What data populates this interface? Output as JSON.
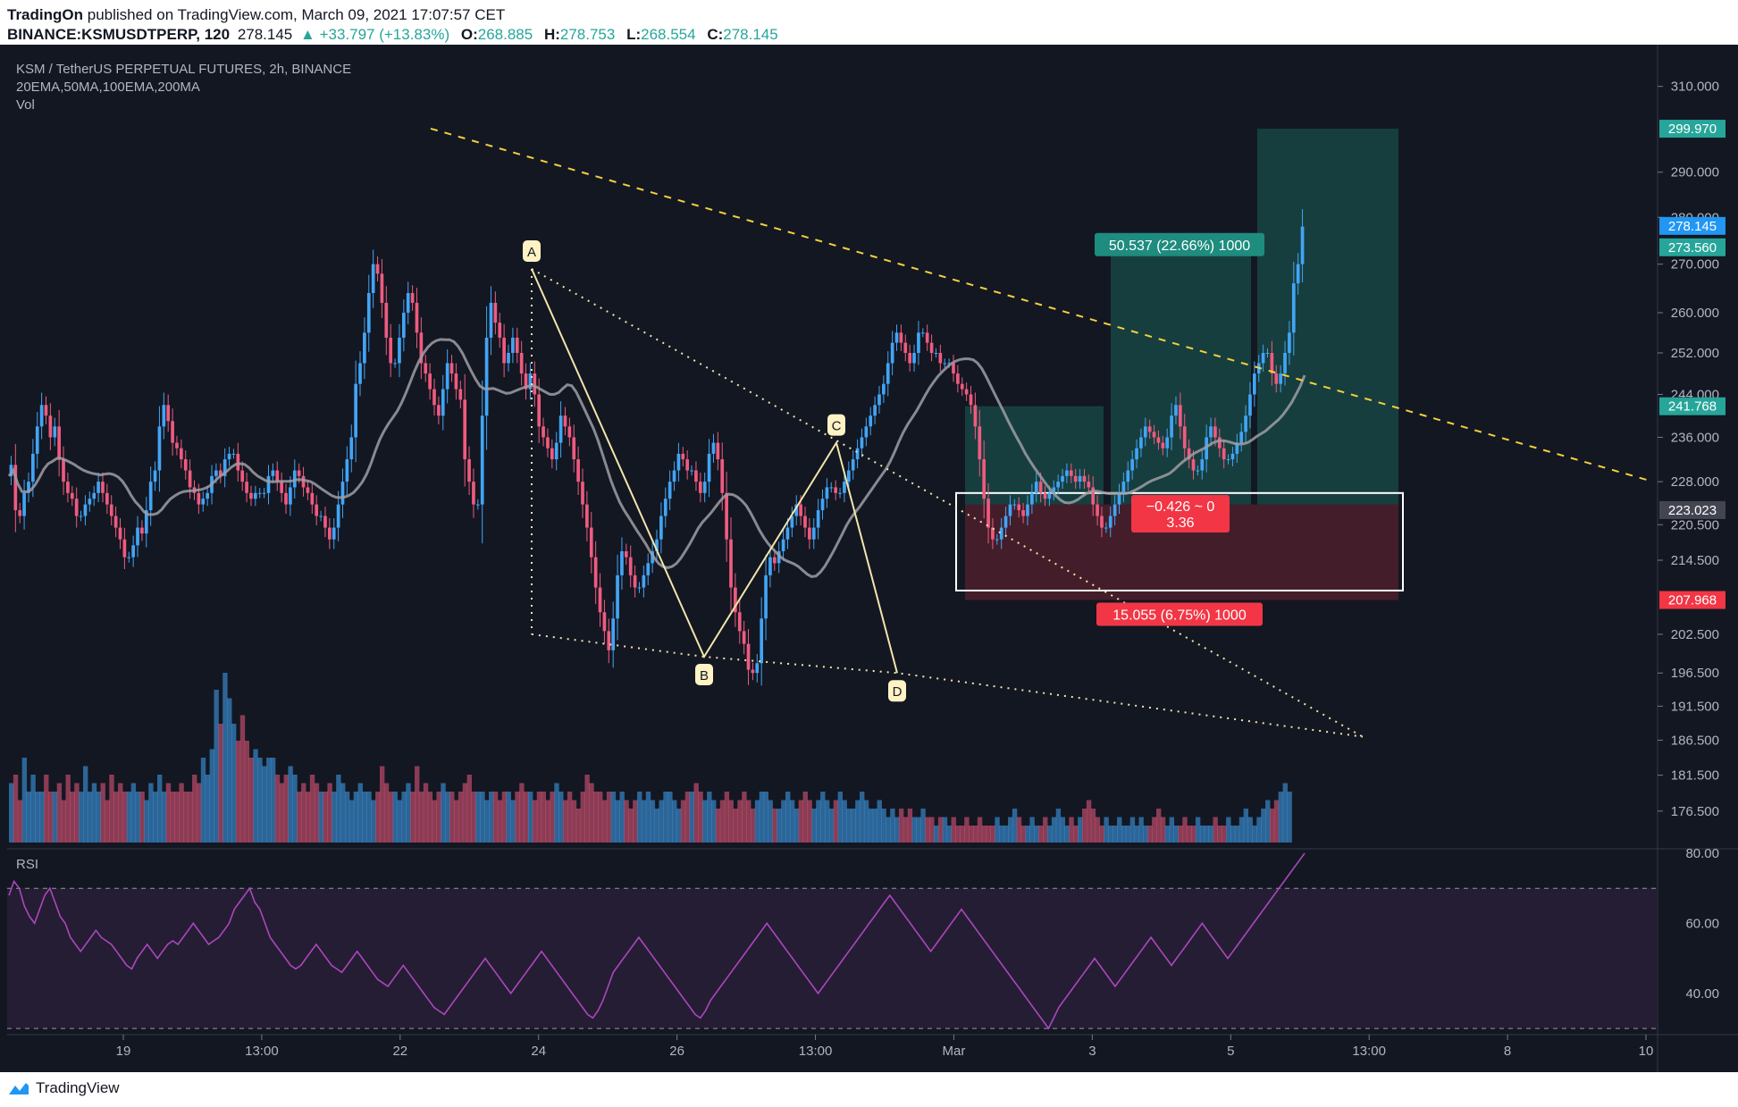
{
  "header": {
    "publisher": "TradingOn",
    "published_text": "published on TradingView.com, March 09, 2021 17:07:57 CET",
    "symbol": "BINANCE:KSMUSDTPERP, 120",
    "last": "278.145",
    "change": "+33.797 (+13.83%)",
    "o_label": "O:",
    "o": "268.885",
    "h_label": "H:",
    "h": "278.753",
    "l_label": "L:",
    "l": "268.554",
    "c_label": "C:",
    "c": "278.145"
  },
  "legend": {
    "title": "KSM / TetherUS PERPETUAL FUTURES, 2h, BINANCE",
    "indicators": "20EMA,50MA,100EMA,200MA",
    "volume": "Vol",
    "rsi": "RSI"
  },
  "footer": {
    "brand": "TradingView"
  },
  "colors": {
    "background": "#131722",
    "up": "#42a5f5",
    "down": "#ef5b7f",
    "ma": "#9e9ea4",
    "rsi": "#ab47bc",
    "trendline": "#f4d03f",
    "target_tag": "#26a69a",
    "stop_tag": "#f23645",
    "last_tag": "#2196f3"
  },
  "chart_data": [
    {
      "type": "candlestick",
      "title": "KSM / TetherUS PERPETUAL FUTURES, 2h, BINANCE",
      "y_scale": "log",
      "ylim": [
        172,
        318
      ],
      "y_ticks": [
        "310.000",
        "290.000",
        "280.000",
        "270.000",
        "260.000",
        "252.000",
        "244.000",
        "236.000",
        "228.000",
        "220.500",
        "214.500",
        "202.500",
        "196.500",
        "191.500",
        "186.500",
        "181.500",
        "176.500"
      ],
      "x_ticks": [
        "19",
        "13:00",
        "22",
        "24",
        "26",
        "13:00",
        "Mar",
        "3",
        "5",
        "13:00",
        "8",
        "10"
      ],
      "price_tags": [
        {
          "value": "299.970",
          "price": 299.97,
          "color": "#26a69a"
        },
        {
          "value": "278.145",
          "price": 278.145,
          "color": "#2196f3"
        },
        {
          "value": "273.560",
          "price": 273.56,
          "color": "#26a69a"
        },
        {
          "value": "241.768",
          "price": 241.768,
          "color": "#26a69a"
        },
        {
          "value": "223.023",
          "price": 223.023,
          "color": "#434651"
        },
        {
          "value": "207.968",
          "price": 207.968,
          "color": "#f23645"
        }
      ],
      "pattern_points": [
        {
          "label": "A",
          "price": 269
        },
        {
          "label": "B",
          "price": 199
        },
        {
          "label": "C",
          "price": 235
        },
        {
          "label": "D",
          "price": 196.5
        }
      ],
      "position_labels": {
        "target": "50.537 (22.66%) 1000",
        "stop": "15.055 (6.75%) 1000",
        "ratio_line1": "−0.426 ~ 0",
        "ratio_line2": "3.36"
      },
      "series": [
        {
          "name": "Price",
          "path": [
            229,
            231,
            223,
            222,
            226,
            228,
            233,
            238,
            242,
            240,
            236,
            238,
            232,
            228,
            226,
            225,
            222,
            222,
            224,
            225,
            226,
            228,
            226,
            224,
            222,
            220,
            218,
            215,
            215,
            217,
            220,
            219,
            223,
            228,
            230,
            238,
            242,
            239,
            235,
            234,
            232,
            230,
            227,
            226,
            224,
            225,
            226,
            229,
            230,
            229,
            232,
            233,
            233,
            230,
            228,
            226,
            225,
            226,
            226,
            226,
            229,
            230,
            228,
            226,
            224,
            227,
            230,
            229,
            227,
            226,
            224,
            222,
            222,
            220,
            218,
            220,
            224,
            228,
            232,
            236,
            246,
            250,
            256,
            264,
            270,
            268,
            262,
            255,
            250,
            250,
            255,
            260,
            264,
            262,
            256,
            250,
            248,
            245,
            242,
            240,
            245,
            250,
            248,
            245,
            243,
            232,
            228,
            224,
            224,
            240,
            255,
            262,
            258,
            255,
            250,
            252,
            255,
            252,
            248,
            245,
            248,
            244,
            238,
            236,
            234,
            232,
            235,
            240,
            238,
            236,
            232,
            228,
            224,
            220,
            215,
            210,
            206,
            203,
            200,
            205,
            212,
            216,
            215,
            212,
            210,
            210,
            212,
            214,
            216,
            218,
            222,
            225,
            228,
            230,
            233,
            232,
            230,
            230,
            228,
            226,
            228,
            233,
            235,
            232,
            226,
            218,
            210,
            206,
            203,
            201,
            197,
            196.5,
            198,
            205,
            212,
            215,
            214,
            216,
            218,
            220,
            222,
            224,
            222,
            220,
            218,
            220,
            223,
            225,
            227,
            227,
            226,
            226,
            228,
            230,
            232,
            234,
            236,
            238,
            240,
            242,
            244,
            246,
            250,
            254,
            256,
            254,
            252,
            250,
            252,
            256,
            256,
            254,
            252,
            252,
            250,
            250,
            250,
            248,
            246,
            245,
            244,
            242,
            238,
            232,
            225,
            220,
            218,
            218,
            220,
            222,
            224,
            224,
            223,
            222,
            224,
            226,
            228,
            226,
            225,
            226,
            227,
            228,
            229,
            230,
            229,
            228,
            229,
            228,
            227,
            224,
            222,
            220,
            220,
            222,
            224,
            226,
            228,
            230,
            232,
            234,
            236,
            238,
            237,
            236,
            235,
            234,
            236,
            240,
            242,
            238,
            234,
            232,
            230,
            230,
            232,
            236,
            238,
            236,
            234,
            232,
            232,
            233,
            235,
            237,
            240,
            244,
            248,
            250,
            252,
            252,
            248,
            246,
            248,
            252,
            256,
            266,
            270,
            278
          ]
        },
        {
          "name": "Volume",
          "values": [
            0.35,
            0.4,
            0.25,
            0.5,
            0.3,
            0.4,
            0.3,
            0.3,
            0.4,
            0.3,
            0.3,
            0.35,
            0.25,
            0.4,
            0.3,
            0.35,
            0.3,
            0.45,
            0.3,
            0.35,
            0.3,
            0.35,
            0.25,
            0.4,
            0.3,
            0.35,
            0.3,
            0.3,
            0.35,
            0.3,
            0.3,
            0.25,
            0.35,
            0.3,
            0.4,
            0.3,
            0.35,
            0.3,
            0.3,
            0.35,
            0.3,
            0.3,
            0.4,
            0.35,
            0.5,
            0.4,
            0.55,
            0.9,
            0.7,
            1.0,
            0.85,
            0.7,
            0.6,
            0.75,
            0.6,
            0.5,
            0.55,
            0.5,
            0.45,
            0.5,
            0.5,
            0.4,
            0.35,
            0.4,
            0.45,
            0.4,
            0.3,
            0.35,
            0.3,
            0.4,
            0.35,
            0.3,
            0.3,
            0.35,
            0.3,
            0.4,
            0.35,
            0.3,
            0.25,
            0.3,
            0.35,
            0.3,
            0.3,
            0.25,
            0.3,
            0.45,
            0.35,
            0.3,
            0.3,
            0.25,
            0.3,
            0.35,
            0.3,
            0.45,
            0.3,
            0.35,
            0.3,
            0.25,
            0.3,
            0.35,
            0.3,
            0.3,
            0.25,
            0.3,
            0.35,
            0.4,
            0.3,
            0.3,
            0.3,
            0.25,
            0.3,
            0.3,
            0.25,
            0.3,
            0.3,
            0.25,
            0.3,
            0.35,
            0.3,
            0.3,
            0.25,
            0.3,
            0.3,
            0.25,
            0.3,
            0.35,
            0.3,
            0.25,
            0.3,
            0.25,
            0.2,
            0.3,
            0.4,
            0.35,
            0.3,
            0.3,
            0.25,
            0.3,
            0.3,
            0.25,
            0.3,
            0.25,
            0.2,
            0.25,
            0.3,
            0.25,
            0.3,
            0.25,
            0.2,
            0.25,
            0.3,
            0.3,
            0.25,
            0.2,
            0.25,
            0.3,
            0.3,
            0.35,
            0.3,
            0.25,
            0.3,
            0.25,
            0.2,
            0.25,
            0.3,
            0.25,
            0.2,
            0.25,
            0.3,
            0.25,
            0.2,
            0.25,
            0.3,
            0.3,
            0.25,
            0.2,
            0.2,
            0.25,
            0.3,
            0.25,
            0.2,
            0.25,
            0.3,
            0.25,
            0.2,
            0.25,
            0.3,
            0.25,
            0.2,
            0.25,
            0.3,
            0.25,
            0.2,
            0.2,
            0.25,
            0.3,
            0.25,
            0.2,
            0.2,
            0.25,
            0.2,
            0.15,
            0.2,
            0.15,
            0.2,
            0.15,
            0.2,
            0.15,
            0.15,
            0.2,
            0.15,
            0.15,
            0.1,
            0.15,
            0.15,
            0.1,
            0.15,
            0.1,
            0.1,
            0.15,
            0.1,
            0.1,
            0.15,
            0.1,
            0.1,
            0.1,
            0.15,
            0.1,
            0.1,
            0.15,
            0.2,
            0.15,
            0.1,
            0.1,
            0.15,
            0.1,
            0.1,
            0.15,
            0.1,
            0.15,
            0.2,
            0.15,
            0.1,
            0.15,
            0.1,
            0.15,
            0.2,
            0.25,
            0.2,
            0.15,
            0.1,
            0.15,
            0.1,
            0.1,
            0.15,
            0.1,
            0.1,
            0.15,
            0.1,
            0.15,
            0.1,
            0.1,
            0.15,
            0.2,
            0.15,
            0.1,
            0.15,
            0.1,
            0.1,
            0.15,
            0.1,
            0.1,
            0.15,
            0.1,
            0.1,
            0.1,
            0.15,
            0.1,
            0.1,
            0.15,
            0.1,
            0.1,
            0.15,
            0.2,
            0.15,
            0.1,
            0.15,
            0.2,
            0.25,
            0.2,
            0.25,
            0.3,
            0.35,
            0.3
          ]
        }
      ]
    },
    {
      "type": "line",
      "title": "RSI",
      "ylim": [
        29,
        80
      ],
      "y_ticks": [
        "80.00",
        "60.00",
        "40.00"
      ],
      "bands": [
        70,
        30
      ],
      "series": [
        {
          "name": "RSI",
          "values": [
            68,
            72,
            70,
            65,
            62,
            60,
            64,
            68,
            70,
            66,
            62,
            60,
            56,
            54,
            52,
            54,
            56,
            58,
            56,
            55,
            54,
            52,
            50,
            48,
            47,
            50,
            52,
            54,
            52,
            50,
            52,
            54,
            55,
            54,
            56,
            58,
            60,
            58,
            56,
            54,
            55,
            56,
            58,
            60,
            64,
            66,
            68,
            70,
            66,
            64,
            60,
            56,
            54,
            52,
            50,
            48,
            47,
            48,
            50,
            52,
            54,
            52,
            50,
            48,
            47,
            46,
            48,
            50,
            52,
            50,
            48,
            46,
            44,
            43,
            42,
            44,
            46,
            48,
            46,
            44,
            42,
            40,
            38,
            36,
            35,
            34,
            36,
            38,
            40,
            42,
            44,
            46,
            48,
            50,
            48,
            46,
            44,
            42,
            40,
            42,
            44,
            46,
            48,
            50,
            52,
            50,
            48,
            46,
            44,
            42,
            40,
            38,
            36,
            34,
            33,
            35,
            38,
            42,
            46,
            48,
            50,
            52,
            54,
            56,
            54,
            52,
            50,
            48,
            46,
            44,
            42,
            40,
            38,
            36,
            34,
            33,
            35,
            38,
            40,
            42,
            44,
            46,
            48,
            50,
            52,
            54,
            56,
            58,
            60,
            58,
            56,
            54,
            52,
            50,
            48,
            46,
            44,
            42,
            40,
            42,
            44,
            46,
            48,
            50,
            52,
            54,
            56,
            58,
            60,
            62,
            64,
            66,
            68,
            66,
            64,
            62,
            60,
            58,
            56,
            54,
            52,
            54,
            56,
            58,
            60,
            62,
            64,
            62,
            60,
            58,
            56,
            54,
            52,
            50,
            48,
            46,
            44,
            42,
            40,
            38,
            36,
            34,
            32,
            30,
            33,
            36,
            38,
            40,
            42,
            44,
            46,
            48,
            50,
            48,
            46,
            44,
            42,
            44,
            46,
            48,
            50,
            52,
            54,
            56,
            54,
            52,
            50,
            48,
            50,
            52,
            54,
            56,
            58,
            60,
            58,
            56,
            54,
            52,
            50,
            52,
            54,
            56,
            58,
            60,
            62,
            64,
            66,
            68,
            70,
            72,
            74,
            76,
            78,
            80
          ]
        }
      ]
    }
  ]
}
